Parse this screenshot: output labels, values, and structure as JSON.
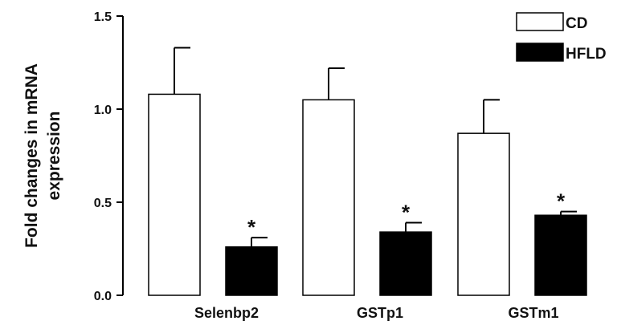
{
  "chart_data": {
    "type": "bar",
    "title": "",
    "xlabel": "",
    "ylabel": [
      "Fold changes in mRNA",
      "expression"
    ],
    "ylim": [
      0,
      1.5
    ],
    "yticks": [
      "0.0",
      "0.5",
      "1.0",
      "1.5"
    ],
    "categories": [
      "Selenbp2",
      "GSTp1",
      "GSTm1"
    ],
    "series": [
      {
        "name": "CD",
        "values": [
          1.08,
          1.05,
          0.87
        ],
        "errors": [
          0.25,
          0.17,
          0.18
        ],
        "significance": [
          "",
          "",
          ""
        ],
        "color": "#ffffff"
      },
      {
        "name": "HFLD",
        "values": [
          0.26,
          0.34,
          0.43
        ],
        "errors": [
          0.05,
          0.05,
          0.02
        ],
        "significance": [
          "*",
          "*",
          "*"
        ],
        "color": "#000000"
      }
    ],
    "legend_position": "top-right",
    "grid": false
  }
}
